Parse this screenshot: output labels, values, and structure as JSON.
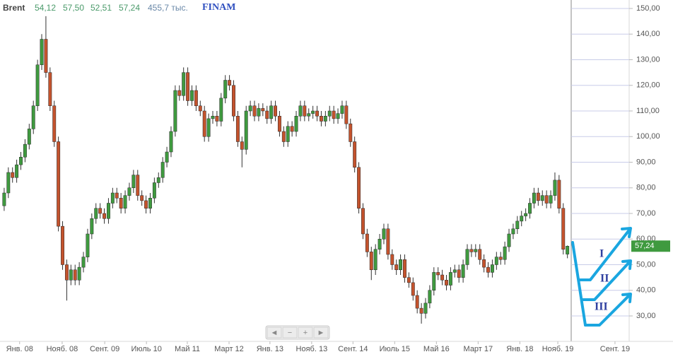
{
  "header": {
    "symbol": "Brent",
    "open": "54,12",
    "high": "57,50",
    "low": "52,51",
    "close": "57,24",
    "volume": "455,7 тыс.",
    "source": "FINAM"
  },
  "navigation": [
    "◄",
    "−",
    "+",
    "►"
  ],
  "chart_data": {
    "type": "candlestick",
    "up_color": "#3f9a3f",
    "down_color": "#c4532d",
    "wick_color": "#333333",
    "grid": true,
    "xlim": [
      -1,
      149.8
    ],
    "ylim": [
      20,
      150
    ],
    "xticks": [
      {
        "value": 3.7,
        "label": "Янв. 08"
      },
      {
        "value": 13.9,
        "label": "Нояб. 08"
      },
      {
        "value": 24.1,
        "label": "Сент. 09"
      },
      {
        "value": 34.1,
        "label": "Июль 10"
      },
      {
        "value": 43.9,
        "label": "Май 11"
      },
      {
        "value": 53.9,
        "label": "Март 12"
      },
      {
        "value": 63.7,
        "label": "Янв. 13"
      },
      {
        "value": 73.7,
        "label": "Нояб. 13"
      },
      {
        "value": 83.6,
        "label": "Сент. 14"
      },
      {
        "value": 93.6,
        "label": "Июль 15"
      },
      {
        "value": 103.6,
        "label": "Май 16"
      },
      {
        "value": 113.6,
        "label": "Март 17"
      },
      {
        "value": 123.6,
        "label": "Янв. 18"
      },
      {
        "value": 132.7,
        "label": "Нояб. 19"
      },
      {
        "value": 146.4,
        "label": "Сент. 19"
      }
    ],
    "yticks": [
      {
        "value": 30,
        "label": "30,00"
      },
      {
        "value": 40,
        "label": "40,00"
      },
      {
        "value": 50,
        "label": "50,00"
      },
      {
        "value": 60,
        "label": "60,00"
      },
      {
        "value": 70,
        "label": "70,00"
      },
      {
        "value": 80,
        "label": "80,00"
      },
      {
        "value": 90,
        "label": "90,00"
      },
      {
        "value": 100,
        "label": "100,00"
      },
      {
        "value": 110,
        "label": "110,00"
      },
      {
        "value": 120,
        "label": "120,00"
      },
      {
        "value": 130,
        "label": "130,00"
      },
      {
        "value": 140,
        "label": "140,00"
      },
      {
        "value": 150,
        "label": "150,00"
      }
    ],
    "last_price": {
      "value": 57.24,
      "label": "57,24"
    },
    "annotations": [
      "I",
      "II",
      "III"
    ],
    "open": [
      73,
      78,
      86,
      84,
      89,
      92,
      97,
      103,
      112,
      128,
      138,
      125,
      112,
      98,
      65,
      50,
      44,
      48,
      44,
      49,
      53,
      62,
      68,
      72,
      70,
      68,
      74,
      78,
      76,
      72,
      77,
      80,
      85,
      77,
      75,
      72,
      76,
      82,
      84,
      90,
      94,
      102,
      118,
      116,
      125,
      114,
      118,
      112,
      110,
      100,
      107,
      108,
      106,
      115,
      122,
      120,
      108,
      98,
      95,
      110,
      112,
      108,
      111,
      110,
      107,
      112,
      108,
      102,
      98,
      104,
      102,
      108,
      112,
      108,
      109,
      110,
      108,
      106,
      108,
      110,
      107,
      109,
      112,
      105,
      98,
      88,
      72,
      62,
      55,
      48,
      56,
      60,
      64,
      54,
      50,
      48,
      52,
      45,
      43,
      38,
      33,
      31,
      35,
      40,
      47,
      46,
      44,
      42,
      47,
      48,
      45,
      50,
      56,
      55,
      56,
      52,
      49,
      47,
      50,
      53,
      52,
      57,
      62,
      64,
      67,
      69,
      70,
      74,
      78,
      75,
      77,
      74,
      77,
      83,
      72,
      54.12
    ],
    "high": [
      80,
      88,
      88,
      91,
      94,
      99,
      105,
      114,
      130,
      140,
      147,
      127,
      114,
      100,
      67,
      52,
      50,
      50,
      51,
      55,
      64,
      70,
      74,
      74,
      72,
      76,
      80,
      80,
      78,
      79,
      82,
      87,
      87,
      79,
      77,
      78,
      84,
      86,
      92,
      96,
      104,
      120,
      120,
      127,
      127,
      120,
      120,
      114,
      112,
      109,
      110,
      110,
      117,
      124,
      124,
      122,
      110,
      100,
      112,
      114,
      114,
      113,
      113,
      112,
      114,
      114,
      110,
      104,
      106,
      106,
      110,
      114,
      114,
      111,
      112,
      112,
      110,
      110,
      112,
      112,
      111,
      114,
      114,
      107,
      100,
      90,
      74,
      64,
      57,
      58,
      62,
      66,
      66,
      56,
      52,
      54,
      54,
      47,
      45,
      40,
      35,
      37,
      42,
      49,
      49,
      48,
      46,
      49,
      50,
      50,
      52,
      58,
      58,
      58,
      58,
      54,
      51,
      52,
      55,
      55,
      59,
      64,
      66,
      69,
      71,
      72,
      76,
      80,
      80,
      79,
      79,
      79,
      86,
      85,
      74,
      57.5
    ],
    "low": [
      71,
      76,
      82,
      82,
      87,
      90,
      95,
      101,
      110,
      126,
      123,
      110,
      96,
      63,
      48,
      36,
      42,
      42,
      42,
      47,
      51,
      60,
      66,
      68,
      66,
      66,
      72,
      74,
      70,
      70,
      75,
      78,
      75,
      73,
      70,
      70,
      74,
      80,
      82,
      88,
      92,
      100,
      114,
      114,
      112,
      112,
      110,
      108,
      98,
      98,
      105,
      104,
      104,
      113,
      118,
      106,
      96,
      88,
      93,
      108,
      106,
      106,
      108,
      105,
      105,
      106,
      100,
      96,
      96,
      100,
      100,
      106,
      106,
      106,
      107,
      106,
      104,
      104,
      106,
      105,
      105,
      107,
      103,
      96,
      86,
      70,
      60,
      53,
      44,
      46,
      54,
      58,
      52,
      48,
      46,
      46,
      43,
      41,
      36,
      31,
      27,
      29,
      33,
      38,
      44,
      42,
      40,
      40,
      45,
      43,
      43,
      48,
      53,
      53,
      50,
      47,
      45,
      45,
      48,
      50,
      50,
      55,
      60,
      62,
      65,
      67,
      68,
      72,
      73,
      73,
      72,
      72,
      75,
      70,
      54,
      52.51
    ],
    "close": [
      78,
      86,
      84,
      89,
      92,
      97,
      103,
      112,
      128,
      138,
      125,
      112,
      98,
      65,
      50,
      44,
      48,
      44,
      49,
      53,
      62,
      68,
      72,
      70,
      68,
      74,
      78,
      76,
      72,
      77,
      80,
      85,
      77,
      75,
      72,
      76,
      82,
      84,
      90,
      94,
      102,
      118,
      116,
      125,
      114,
      118,
      112,
      110,
      100,
      107,
      108,
      106,
      115,
      122,
      120,
      108,
      98,
      95,
      110,
      112,
      108,
      111,
      110,
      107,
      112,
      108,
      102,
      98,
      104,
      102,
      108,
      112,
      108,
      109,
      110,
      108,
      106,
      108,
      110,
      107,
      109,
      112,
      105,
      98,
      88,
      72,
      62,
      55,
      48,
      56,
      60,
      64,
      54,
      50,
      48,
      52,
      45,
      43,
      38,
      33,
      31,
      35,
      40,
      47,
      46,
      44,
      42,
      47,
      48,
      45,
      50,
      56,
      55,
      56,
      52,
      49,
      47,
      50,
      53,
      52,
      57,
      62,
      64,
      67,
      69,
      70,
      74,
      78,
      75,
      77,
      74,
      77,
      83,
      72,
      56,
      57.24
    ]
  }
}
